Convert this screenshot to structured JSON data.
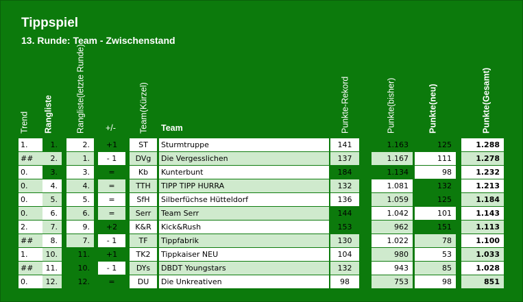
{
  "title": "Tippspiel",
  "subtitle": "13. Runde: Team - Zwischenstand",
  "headers": {
    "trend": "Trend",
    "rangliste": "Rangliste",
    "rangliste_last_1": "Rangliste",
    "rangliste_last_2": "(letzte Runde)",
    "plusminus": "+/-",
    "team_short_1": "Team",
    "team_short_2": "(Kürzel)",
    "team": "Team",
    "rekord": "Punkte-Rekord",
    "bisher_1": "Punkte",
    "bisher_2": "(bisher)",
    "neu_1": "Punkte",
    "neu_2": "(neu)",
    "gesamt_1": "Punkte",
    "gesamt_2": "(Gesamt)"
  },
  "rows": [
    {
      "trend": "1.",
      "rank": "1.",
      "last": "2.",
      "pm": "+1",
      "short": "ST",
      "team": "Sturmtruppe",
      "rekord": "141",
      "bisher": "1.163",
      "neu": "125",
      "gesamt": "1.288"
    },
    {
      "trend": "##",
      "rank": "2.",
      "last": "1.",
      "pm": "- 1",
      "short": "DVg",
      "team": "Die Vergesslichen",
      "rekord": "137",
      "bisher": "1.167",
      "neu": "111",
      "gesamt": "1.278"
    },
    {
      "trend": "0.",
      "rank": "3.",
      "last": "3.",
      "pm": "=",
      "short": "Kb",
      "team": "Kunterbunt",
      "rekord": "184",
      "bisher": "1.134",
      "neu": "98",
      "gesamt": "1.232"
    },
    {
      "trend": "0.",
      "rank": "4.",
      "last": "4.",
      "pm": "=",
      "short": "TTH",
      "team": "TIPP TIPP HURRA",
      "rekord": "132",
      "bisher": "1.081",
      "neu": "132",
      "gesamt": "1.213"
    },
    {
      "trend": "0.",
      "rank": "5.",
      "last": "5.",
      "pm": "=",
      "short": "SfH",
      "team": "Silberfüchse Hütteldorf",
      "rekord": "136",
      "bisher": "1.059",
      "neu": "125",
      "gesamt": "1.184"
    },
    {
      "trend": "0.",
      "rank": "6.",
      "last": "6.",
      "pm": "=",
      "short": "Serr",
      "team": "Team Serr",
      "rekord": "144",
      "bisher": "1.042",
      "neu": "101",
      "gesamt": "1.143"
    },
    {
      "trend": "2.",
      "rank": "7.",
      "last": "9.",
      "pm": "+2",
      "short": "K&R",
      "team": "Kick&Rush",
      "rekord": "153",
      "bisher": "962",
      "neu": "151",
      "gesamt": "1.113"
    },
    {
      "trend": "##",
      "rank": "8.",
      "last": "7.",
      "pm": "- 1",
      "short": "TF",
      "team": "Tippfabrik",
      "rekord": "130",
      "bisher": "1.022",
      "neu": "78",
      "gesamt": "1.100"
    },
    {
      "trend": "1.",
      "rank": "10.",
      "last": "11.",
      "pm": "+1",
      "short": "TK2",
      "team": "Tippkaiser NEU",
      "rekord": "104",
      "bisher": "980",
      "neu": "53",
      "gesamt": "1.033"
    },
    {
      "trend": "##",
      "rank": "11.",
      "last": "10.",
      "pm": "- 1",
      "short": "DYs",
      "team": "DBDT Youngstars",
      "rekord": "132",
      "bisher": "943",
      "neu": "85",
      "gesamt": "1.028"
    },
    {
      "trend": "0.",
      "rank": "12.",
      "last": "12.",
      "pm": "=",
      "short": "DU",
      "team": "Die Unkreativen",
      "rekord": "98",
      "bisher": "753",
      "neu": "98",
      "gesamt": "851"
    }
  ],
  "row_styles": [
    {
      "trend": "w",
      "rank": "dg",
      "last": "w",
      "pm": "dg",
      "short": "w",
      "team": "w",
      "rekord": "w",
      "bisher": "dg",
      "neu": "dg",
      "gesamt": "w"
    },
    {
      "trend": "g",
      "rank": "g",
      "last": "g",
      "pm": "w",
      "short": "g",
      "team": "g",
      "rekord": "g",
      "bisher": "g",
      "neu": "w",
      "gesamt": "g"
    },
    {
      "trend": "w",
      "rank": "dg",
      "last": "w",
      "pm": "dg",
      "short": "w",
      "team": "w",
      "rekord": "dg",
      "bisher": "dg",
      "neu": "w",
      "gesamt": "w"
    },
    {
      "trend": "g",
      "rank": "w",
      "last": "g",
      "pm": "g",
      "short": "g",
      "team": "g",
      "rekord": "g",
      "bisher": "w",
      "neu": "dg",
      "gesamt": "w"
    },
    {
      "trend": "w",
      "rank": "g",
      "last": "w",
      "pm": "w",
      "short": "w",
      "team": "w",
      "rekord": "w",
      "bisher": "g",
      "neu": "dg",
      "gesamt": "g"
    },
    {
      "trend": "g",
      "rank": "w",
      "last": "g",
      "pm": "g",
      "short": "g",
      "team": "g",
      "rekord": "dg",
      "bisher": "w",
      "neu": "w",
      "gesamt": "w"
    },
    {
      "trend": "w",
      "rank": "g",
      "last": "w",
      "pm": "dg",
      "short": "w",
      "team": "w",
      "rekord": "dg",
      "bisher": "g",
      "neu": "dg",
      "gesamt": "g"
    },
    {
      "trend": "g",
      "rank": "w",
      "last": "g",
      "pm": "w",
      "short": "g",
      "team": "g",
      "rekord": "g",
      "bisher": "w",
      "neu": "g",
      "gesamt": "w"
    },
    {
      "trend": "w",
      "rank": "g",
      "last": "dg",
      "pm": "dg",
      "short": "w",
      "team": "w",
      "rekord": "w",
      "bisher": "g",
      "neu": "w",
      "gesamt": "g"
    },
    {
      "trend": "g",
      "rank": "w",
      "last": "dg",
      "pm": "w",
      "short": "g",
      "team": "g",
      "rekord": "g",
      "bisher": "w",
      "neu": "g",
      "gesamt": "w"
    },
    {
      "trend": "w",
      "rank": "g",
      "last": "dg",
      "pm": "dg",
      "short": "w",
      "team": "w",
      "rekord": "w",
      "bisher": "g",
      "neu": "w",
      "gesamt": "g"
    }
  ]
}
